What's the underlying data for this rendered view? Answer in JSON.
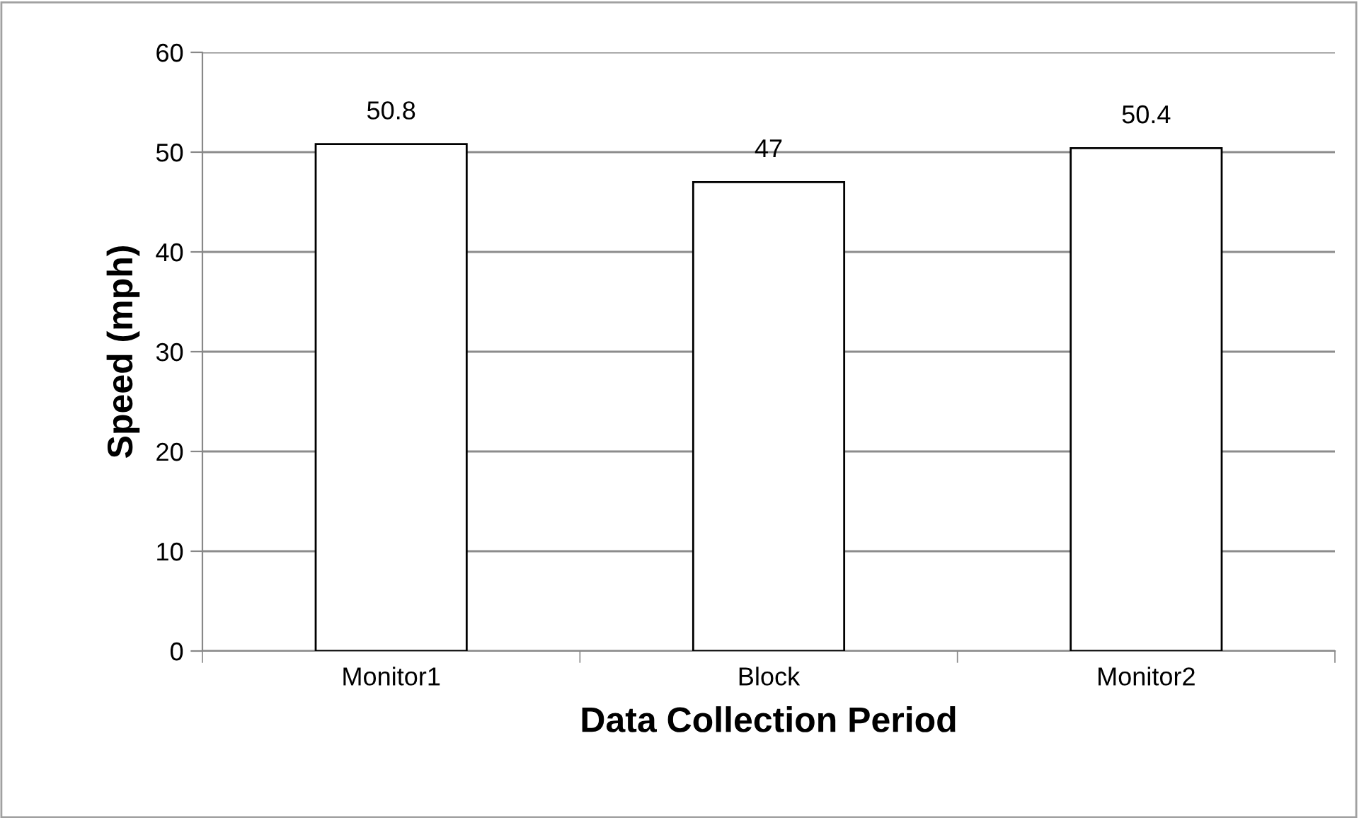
{
  "chart_data": {
    "type": "bar",
    "xlabel": "Data Collection Period",
    "ylabel": "Speed (mph)",
    "categories": [
      "Monitor1",
      "Block",
      "Monitor2"
    ],
    "values": [
      50.8,
      47,
      50.4
    ],
    "color": "#ffffff",
    "ylim": [
      0,
      60
    ],
    "yticks": [
      0,
      10,
      20,
      30,
      40,
      50,
      60
    ],
    "grid": "y",
    "data_labels": true,
    "legend": false
  }
}
